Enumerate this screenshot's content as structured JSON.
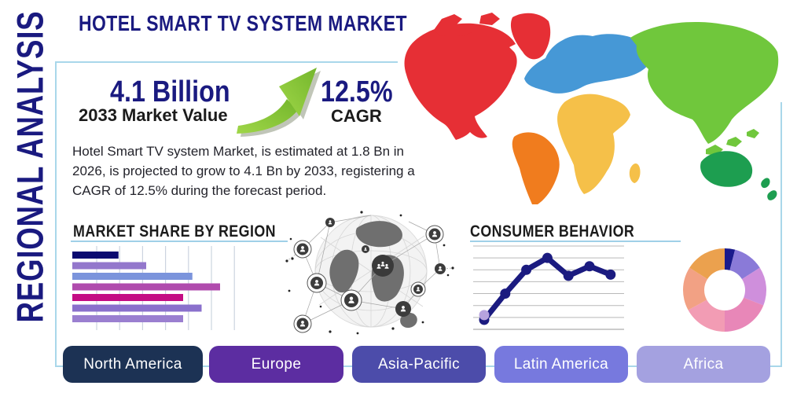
{
  "page": {
    "title": "HOTEL SMART TV SYSTEM MARKET",
    "side_label": "REGIONAL ANALYSIS"
  },
  "highlight": {
    "market_value": "4.1 Billion",
    "market_value_label": "2033 Market Value",
    "cagr_value": "12.5%",
    "cagr_label": "CAGR",
    "arrow_icon": "growth-arrow-icon",
    "arrow_color": "#84c235"
  },
  "description": "Hotel Smart TV system Market, is estimated at 1.8 Bn in 2026, is projected to grow to 4.1 Bn by 2033, registering a CAGR of 12.5% during the forecast period.",
  "sections": {
    "market_share_title": "MARKET SHARE BY REGION",
    "consumer_behavior_title": "CONSUMER BEHAVIOR"
  },
  "region_buttons": [
    {
      "label": "North America",
      "color": "#1c3254"
    },
    {
      "label": "Europe",
      "color": "#5c2da1"
    },
    {
      "label": "Asia-Pacific",
      "color": "#4c4caa"
    },
    {
      "label": "Latin America",
      "color": "#7779de"
    },
    {
      "label": "Africa",
      "color": "#a4a1e0"
    }
  ],
  "map": {
    "regions": [
      {
        "name": "north-america",
        "color": "#e62f35"
      },
      {
        "name": "greenland",
        "color": "#e62f35"
      },
      {
        "name": "south-america",
        "color": "#f07c1e"
      },
      {
        "name": "europe",
        "color": "#4698d6"
      },
      {
        "name": "africa",
        "color": "#f5c049"
      },
      {
        "name": "asia",
        "color": "#70c73c"
      },
      {
        "name": "oceania",
        "color": "#1d9e50"
      }
    ]
  },
  "chart_data": [
    {
      "type": "bar",
      "title": "MARKET SHARE BY REGION",
      "orientation": "horizontal",
      "values": [
        25,
        40,
        65,
        80,
        60,
        70,
        60
      ],
      "unit": "relative length, % of plot width (no tick labels shown)",
      "colors": [
        "#0a0a70",
        "#9377cc",
        "#7b94dc",
        "#b04bad",
        "#c40c84",
        "#8a70cc",
        "#9a7fd0"
      ],
      "grid": "vertical",
      "gridline_count": 7,
      "axis_labels": false
    },
    {
      "type": "line",
      "title": "CONSUMER BEHAVIOR",
      "x": [
        1,
        2,
        3,
        4,
        5,
        6,
        7
      ],
      "values": [
        0.8,
        3.0,
        5.0,
        6.0,
        4.5,
        5.3,
        4.6
      ],
      "ylim": [
        0,
        7
      ],
      "grid": "horizontal",
      "gridline_count": 8,
      "line_color": "#1b1b80",
      "start_point_color": "#b7a3de",
      "axis_labels": false
    },
    {
      "type": "pie",
      "donut": true,
      "values": [
        4,
        12,
        15,
        19,
        17,
        17,
        16
      ],
      "colors": [
        "#1a1a8c",
        "#8a7ad8",
        "#cf8fdc",
        "#e887b8",
        "#f29cb4",
        "#f2a184",
        "#eba14e"
      ],
      "start_angle_deg": -90,
      "direction": "clockwise",
      "labels_shown": false
    }
  ],
  "colors": {
    "title_navy": "#1a1a80",
    "heading_black": "#1c1c1c",
    "box_border": "#a9d7ea",
    "underline": "#9fd0e8",
    "button_text": "#ffffff"
  }
}
